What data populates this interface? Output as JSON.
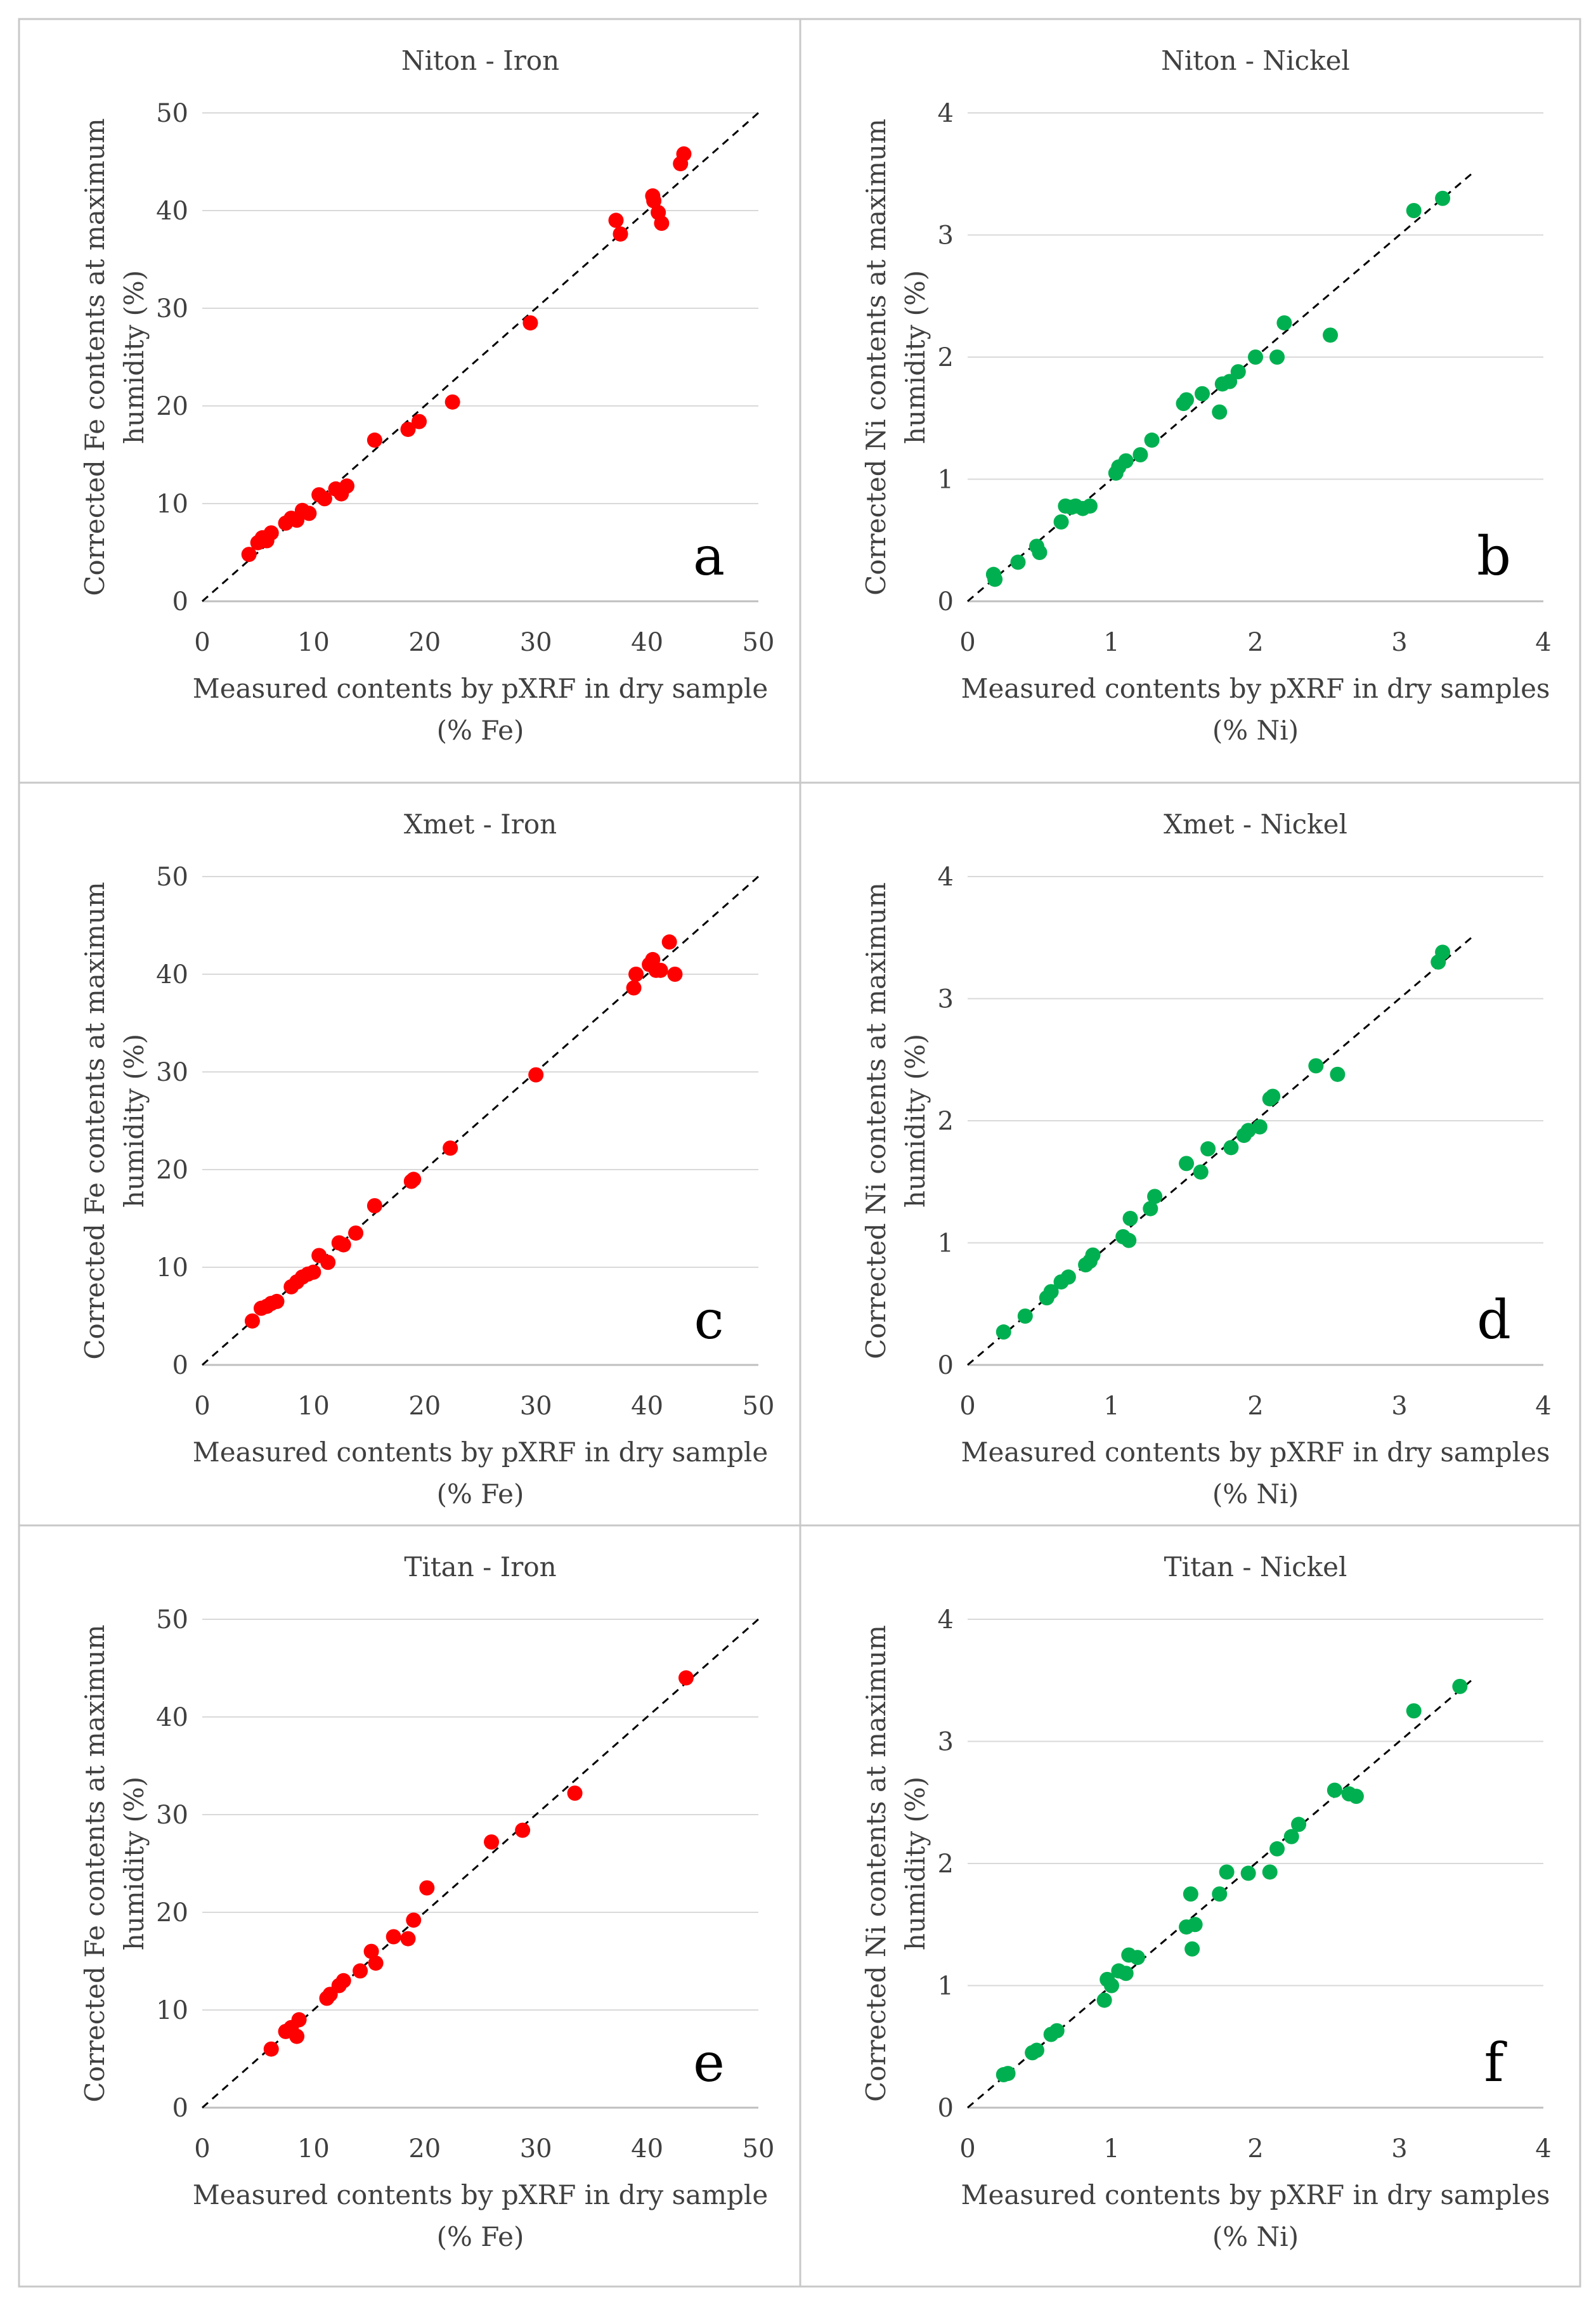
{
  "colors": {
    "iron": "#ff0000",
    "nickel": "#00b050"
  },
  "chart_data": [
    {
      "type": "scatter",
      "title": "Niton - Iron",
      "letter": "a",
      "xlabel": [
        "Measured contents by pXRF in dry sample",
        "(% Fe)"
      ],
      "ylabel": [
        "Corrected Fe contents at maximum",
        "humidity (%)"
      ],
      "xlim": [
        0,
        50
      ],
      "ylim": [
        0,
        50
      ],
      "xticks": [
        "0",
        "10",
        "20",
        "30",
        "40",
        "50"
      ],
      "yticks": [
        "0",
        "10",
        "20",
        "30",
        "40",
        "50"
      ],
      "series": "iron",
      "x": [
        4.2,
        5.0,
        5.4,
        5.8,
        6.2,
        7.5,
        8.0,
        8.5,
        9.0,
        9.6,
        10.5,
        11.0,
        12.0,
        12.5,
        13.0,
        15.5,
        18.5,
        19.5,
        22.5,
        29.5,
        37.2,
        37.6,
        40.5,
        40.6,
        41.0,
        41.3,
        43.0,
        43.3
      ],
      "y": [
        4.8,
        6.0,
        6.5,
        6.2,
        7.0,
        8.0,
        8.5,
        8.3,
        9.3,
        9.0,
        10.9,
        10.5,
        11.5,
        11.0,
        11.8,
        16.5,
        17.6,
        18.4,
        20.4,
        28.5,
        39.0,
        37.6,
        41.5,
        41.0,
        39.8,
        38.7,
        44.8,
        45.8
      ],
      "fit": [
        0,
        50
      ]
    },
    {
      "type": "scatter",
      "title": "Niton - Nickel",
      "letter": "b",
      "xlabel": [
        "Measured contents by pXRF in dry samples",
        "(% Ni)"
      ],
      "ylabel": [
        "Corrected Ni contents at maximum",
        "humidity (%)"
      ],
      "xlim": [
        0,
        4
      ],
      "ylim": [
        0,
        4
      ],
      "xticks": [
        "0",
        "1",
        "2",
        "3",
        "4"
      ],
      "yticks": [
        "0",
        "1",
        "2",
        "3",
        "4"
      ],
      "series": "nickel",
      "x": [
        0.18,
        0.19,
        0.35,
        0.48,
        0.5,
        0.65,
        0.68,
        0.72,
        0.75,
        0.8,
        0.85,
        1.03,
        1.05,
        1.1,
        1.2,
        1.28,
        1.5,
        1.52,
        1.63,
        1.75,
        1.77,
        1.82,
        1.88,
        2.0,
        2.15,
        2.2,
        2.52,
        3.1,
        3.3
      ],
      "y": [
        0.22,
        0.18,
        0.32,
        0.45,
        0.4,
        0.65,
        0.78,
        0.77,
        0.78,
        0.76,
        0.78,
        1.05,
        1.1,
        1.15,
        1.2,
        1.32,
        1.62,
        1.65,
        1.7,
        1.55,
        1.78,
        1.8,
        1.88,
        2.0,
        2.0,
        2.28,
        2.18,
        3.2,
        3.3
      ],
      "fit": [
        0,
        3.5
      ]
    },
    {
      "type": "scatter",
      "title": "Xmet - Iron",
      "letter": "c",
      "xlabel": [
        "Measured contents by pXRF in dry sample",
        "(% Fe)"
      ],
      "ylabel": [
        "Corrected Fe contents at maximum",
        "humidity (%)"
      ],
      "xlim": [
        0,
        50
      ],
      "ylim": [
        0,
        50
      ],
      "xticks": [
        "0",
        "10",
        "20",
        "30",
        "40",
        "50"
      ],
      "yticks": [
        "0",
        "10",
        "20",
        "30",
        "40",
        "50"
      ],
      "series": "iron",
      "x": [
        4.5,
        5.3,
        5.8,
        6.2,
        6.7,
        8.0,
        8.5,
        9.0,
        9.5,
        10.0,
        10.5,
        11.3,
        12.3,
        12.7,
        13.8,
        15.5,
        18.8,
        19.0,
        22.3,
        30.0,
        38.8,
        39.0,
        40.2,
        40.5,
        40.8,
        41.2,
        42.0,
        42.5
      ],
      "y": [
        4.5,
        5.8,
        6.0,
        6.3,
        6.5,
        8.0,
        8.5,
        9.0,
        9.3,
        9.5,
        11.2,
        10.5,
        12.5,
        12.3,
        13.5,
        16.3,
        18.8,
        19.0,
        22.2,
        29.7,
        38.6,
        40.0,
        41.0,
        41.5,
        40.4,
        40.4,
        43.3,
        40.0
      ],
      "fit": [
        0,
        50
      ]
    },
    {
      "type": "scatter",
      "title": "Xmet - Nickel",
      "letter": "d",
      "xlabel": [
        "Measured contents by pXRF in dry samples",
        "(% Ni)"
      ],
      "ylabel": [
        "Corrected Ni contents at maximum",
        "humidity (%)"
      ],
      "xlim": [
        0,
        4
      ],
      "ylim": [
        0,
        4
      ],
      "xticks": [
        "0",
        "1",
        "2",
        "3",
        "4"
      ],
      "yticks": [
        "0",
        "1",
        "2",
        "3",
        "4"
      ],
      "series": "nickel",
      "x": [
        0.25,
        0.4,
        0.55,
        0.58,
        0.65,
        0.7,
        0.82,
        0.85,
        0.87,
        1.08,
        1.12,
        1.13,
        1.27,
        1.3,
        1.52,
        1.62,
        1.67,
        1.83,
        1.92,
        1.95,
        2.03,
        2.1,
        2.12,
        2.42,
        2.57,
        3.27,
        3.3
      ],
      "y": [
        0.27,
        0.4,
        0.55,
        0.6,
        0.68,
        0.72,
        0.82,
        0.85,
        0.9,
        1.05,
        1.02,
        1.2,
        1.28,
        1.38,
        1.65,
        1.58,
        1.77,
        1.78,
        1.88,
        1.92,
        1.95,
        2.18,
        2.2,
        2.45,
        2.38,
        3.3,
        3.38
      ],
      "fit": [
        0,
        3.5
      ]
    },
    {
      "type": "scatter",
      "title": "Titan - Iron",
      "letter": "e",
      "xlabel": [
        "Measured contents by pXRF in dry sample",
        "(% Fe)"
      ],
      "ylabel": [
        "Corrected Fe contents at maximum",
        "humidity (%)"
      ],
      "xlim": [
        0,
        50
      ],
      "ylim": [
        0,
        50
      ],
      "xticks": [
        "0",
        "10",
        "20",
        "30",
        "40",
        "50"
      ],
      "yticks": [
        "0",
        "10",
        "20",
        "30",
        "40",
        "50"
      ],
      "series": "iron",
      "x": [
        6.2,
        7.5,
        8.0,
        8.5,
        8.7,
        11.2,
        11.5,
        12.3,
        12.7,
        14.2,
        15.2,
        15.6,
        17.2,
        18.5,
        19.0,
        20.2,
        26.0,
        28.8,
        33.5,
        43.5
      ],
      "y": [
        6.0,
        7.8,
        8.2,
        7.3,
        9.0,
        11.2,
        11.6,
        12.5,
        13.0,
        14.0,
        16.0,
        14.8,
        17.5,
        17.3,
        19.2,
        22.5,
        27.2,
        28.4,
        32.2,
        44.0
      ],
      "fit": [
        0,
        50
      ]
    },
    {
      "type": "scatter",
      "title": "Titan - Nickel",
      "letter": "f",
      "xlabel": [
        "Measured contents by pXRF in dry samples",
        "(% Ni)"
      ],
      "ylabel": [
        "Corrected Ni contents at maximum",
        "humidity (%)"
      ],
      "xlim": [
        0,
        4
      ],
      "ylim": [
        0,
        4
      ],
      "xticks": [
        "0",
        "1",
        "2",
        "3",
        "4"
      ],
      "yticks": [
        "0",
        "1",
        "2",
        "3",
        "4"
      ],
      "series": "nickel",
      "x": [
        0.25,
        0.28,
        0.45,
        0.48,
        0.58,
        0.62,
        0.95,
        0.97,
        1.0,
        1.05,
        1.1,
        1.12,
        1.18,
        1.52,
        1.55,
        1.56,
        1.58,
        1.75,
        1.8,
        1.95,
        2.1,
        2.15,
        2.25,
        2.3,
        2.55,
        2.65,
        2.7,
        3.1,
        3.42
      ],
      "y": [
        0.27,
        0.28,
        0.45,
        0.47,
        0.6,
        0.63,
        0.88,
        1.05,
        1.0,
        1.12,
        1.1,
        1.25,
        1.23,
        1.48,
        1.75,
        1.3,
        1.5,
        1.75,
        1.93,
        1.92,
        1.93,
        2.12,
        2.22,
        2.32,
        2.6,
        2.57,
        2.55,
        3.25,
        3.45
      ],
      "fit": [
        0,
        3.5
      ]
    }
  ]
}
